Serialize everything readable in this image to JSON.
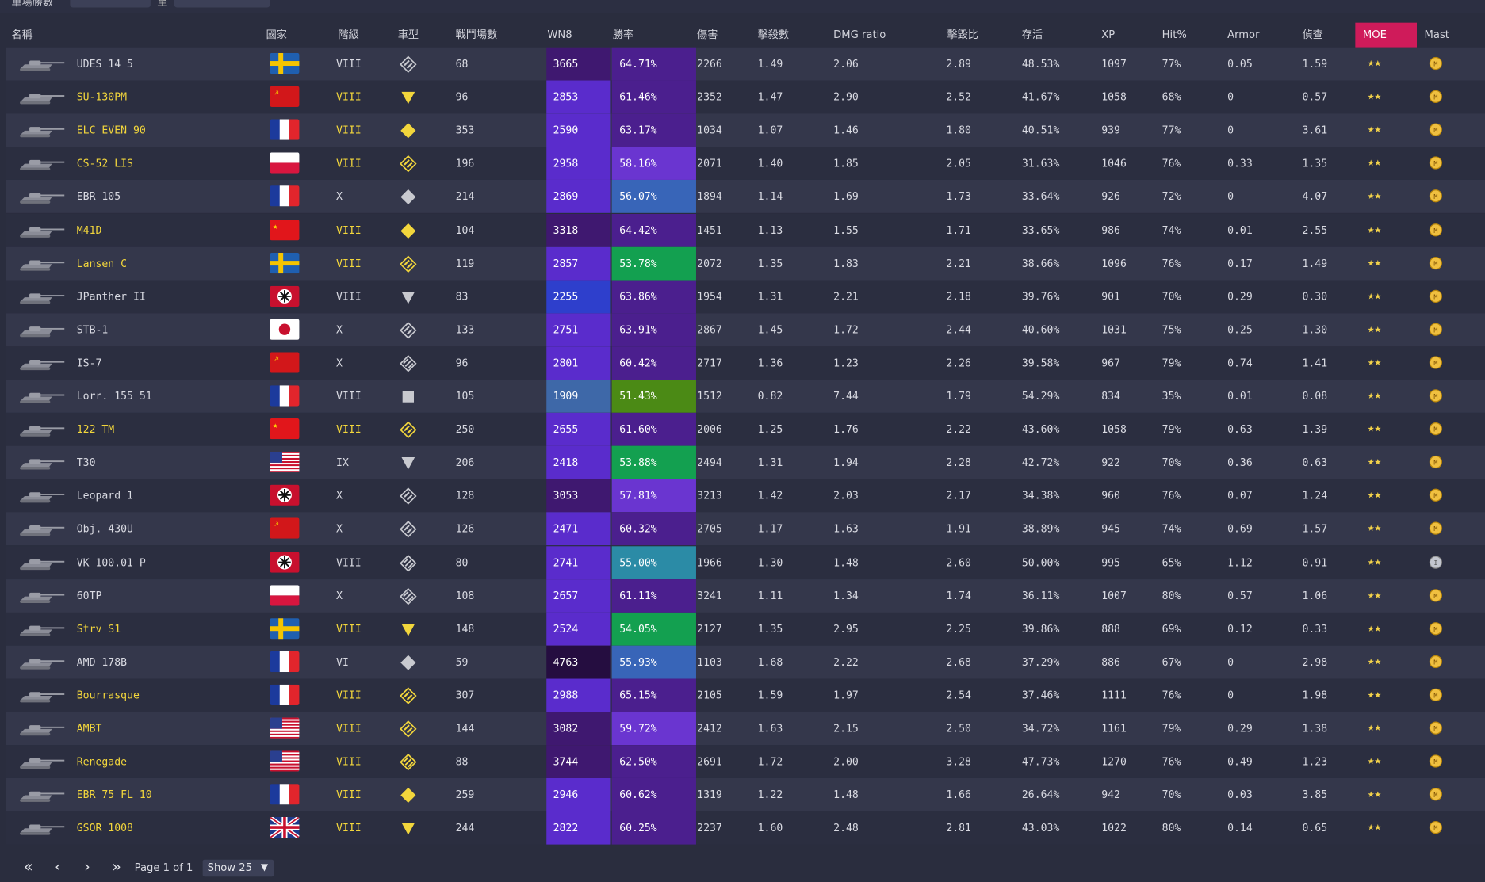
{
  "filter_bar": {
    "label": "單場勝數",
    "separator": "至"
  },
  "headers": {
    "name": "名稱",
    "nation": "國家",
    "tier": "階級",
    "type": "車型",
    "battles": "戰鬥場數",
    "wn8": "WN8",
    "winrate": "勝率",
    "damage": "傷害",
    "kills": "擊殺數",
    "dmg_ratio": "DMG ratio",
    "kd": "擊毀比",
    "survival": "存活",
    "xp": "XP",
    "hit": "Hit%",
    "armor": "Armor",
    "spot": "偵查",
    "moe": "MOE",
    "mast": "Mast"
  },
  "colors": {
    "premium_text": "#f2d63c",
    "moe_header": "#cf1b5a",
    "wn8_scale": {
      "super_unicum": "#250d40",
      "unicum": "#3f1870",
      "great": "#5a2ccc",
      "very_good": "#2e3fcc",
      "good": "#3e68a8"
    },
    "winrate_scale": {
      "super_unicum": "#4b1f8e",
      "unicum": "#6a35d0",
      "very_good": "#3865b8",
      "good": "#2b8ba6",
      "above_avg": "#13a050",
      "average": "#4b8a15"
    }
  },
  "rows": [
    {
      "icon": "tank-icon",
      "name": "UDES 14 5",
      "premium": false,
      "nation": "sweden",
      "tier": "VIII",
      "type": "medium",
      "battles": "68",
      "wn8": "3665",
      "wn8_color": "#3f1870",
      "winrate": "64.71%",
      "wr_color": "#4b1f8e",
      "damage": "2266",
      "kills": "1.49",
      "dmg_ratio": "2.06",
      "kd": "2.89",
      "survival": "48.53%",
      "xp": "1097",
      "hit": "77%",
      "armor": "0.05",
      "spot": "1.59",
      "moe": "★★",
      "mast": "ace"
    },
    {
      "icon": "tank-icon",
      "name": "SU-130PM",
      "premium": true,
      "nation": "ussr",
      "tier": "VIII",
      "type": "td",
      "battles": "96",
      "wn8": "2853",
      "wn8_color": "#5a2ccc",
      "winrate": "61.46%",
      "wr_color": "#4b1f8e",
      "damage": "2352",
      "kills": "1.47",
      "dmg_ratio": "2.90",
      "kd": "2.52",
      "survival": "41.67%",
      "xp": "1058",
      "hit": "68%",
      "armor": "0",
      "spot": "0.57",
      "moe": "★★",
      "mast": "ace"
    },
    {
      "icon": "tank-icon",
      "name": "ELC EVEN 90",
      "premium": true,
      "nation": "france",
      "tier": "VIII",
      "type": "light",
      "battles": "353",
      "wn8": "2590",
      "wn8_color": "#5a2ccc",
      "winrate": "63.17%",
      "wr_color": "#4b1f8e",
      "damage": "1034",
      "kills": "1.07",
      "dmg_ratio": "1.46",
      "kd": "1.80",
      "survival": "40.51%",
      "xp": "939",
      "hit": "77%",
      "armor": "0",
      "spot": "3.61",
      "moe": "★★",
      "mast": "ace"
    },
    {
      "icon": "tank-icon",
      "name": "CS-52 LIS",
      "premium": true,
      "nation": "poland",
      "tier": "VIII",
      "type": "medium",
      "battles": "196",
      "wn8": "2958",
      "wn8_color": "#5a2ccc",
      "winrate": "58.16%",
      "wr_color": "#6a35d0",
      "damage": "2071",
      "kills": "1.40",
      "dmg_ratio": "1.85",
      "kd": "2.05",
      "survival": "31.63%",
      "xp": "1046",
      "hit": "76%",
      "armor": "0.33",
      "spot": "1.35",
      "moe": "★★",
      "mast": "ace"
    },
    {
      "icon": "tank-icon",
      "name": "EBR 105",
      "premium": false,
      "nation": "france",
      "tier": "X",
      "type": "light",
      "battles": "214",
      "wn8": "2869",
      "wn8_color": "#5a2ccc",
      "winrate": "56.07%",
      "wr_color": "#3865b8",
      "damage": "1894",
      "kills": "1.14",
      "dmg_ratio": "1.69",
      "kd": "1.73",
      "survival": "33.64%",
      "xp": "926",
      "hit": "72%",
      "armor": "0",
      "spot": "4.07",
      "moe": "★★",
      "mast": "ace"
    },
    {
      "icon": "tank-icon",
      "name": "M41D",
      "premium": true,
      "nation": "china",
      "tier": "VIII",
      "type": "light",
      "battles": "104",
      "wn8": "3318",
      "wn8_color": "#3f1870",
      "winrate": "64.42%",
      "wr_color": "#4b1f8e",
      "damage": "1451",
      "kills": "1.13",
      "dmg_ratio": "1.55",
      "kd": "1.71",
      "survival": "33.65%",
      "xp": "986",
      "hit": "74%",
      "armor": "0.01",
      "spot": "2.55",
      "moe": "★★",
      "mast": "ace"
    },
    {
      "icon": "tank-icon",
      "name": "Lansen C",
      "premium": true,
      "nation": "sweden",
      "tier": "VIII",
      "type": "medium",
      "battles": "119",
      "wn8": "2857",
      "wn8_color": "#5a2ccc",
      "winrate": "53.78%",
      "wr_color": "#13a050",
      "damage": "2072",
      "kills": "1.35",
      "dmg_ratio": "1.83",
      "kd": "2.21",
      "survival": "38.66%",
      "xp": "1096",
      "hit": "76%",
      "armor": "0.17",
      "spot": "1.49",
      "moe": "★★",
      "mast": "ace"
    },
    {
      "icon": "tank-icon",
      "name": "JPanther II",
      "premium": false,
      "nation": "germany",
      "tier": "VIII",
      "type": "td",
      "battles": "83",
      "wn8": "2255",
      "wn8_color": "#2e3fcc",
      "winrate": "63.86%",
      "wr_color": "#4b1f8e",
      "damage": "1954",
      "kills": "1.31",
      "dmg_ratio": "2.21",
      "kd": "2.18",
      "survival": "39.76%",
      "xp": "901",
      "hit": "70%",
      "armor": "0.29",
      "spot": "0.30",
      "moe": "★★",
      "mast": "ace"
    },
    {
      "icon": "tank-icon",
      "name": "STB-1",
      "premium": false,
      "nation": "japan",
      "tier": "X",
      "type": "medium",
      "battles": "133",
      "wn8": "2751",
      "wn8_color": "#5a2ccc",
      "winrate": "63.91%",
      "wr_color": "#4b1f8e",
      "damage": "2867",
      "kills": "1.45",
      "dmg_ratio": "1.72",
      "kd": "2.44",
      "survival": "40.60%",
      "xp": "1031",
      "hit": "75%",
      "armor": "0.25",
      "spot": "1.30",
      "moe": "★★",
      "mast": "ace"
    },
    {
      "icon": "tank-icon",
      "name": "IS-7",
      "premium": false,
      "nation": "ussr",
      "tier": "X",
      "type": "heavy",
      "battles": "96",
      "wn8": "2801",
      "wn8_color": "#5a2ccc",
      "winrate": "60.42%",
      "wr_color": "#4b1f8e",
      "damage": "2717",
      "kills": "1.36",
      "dmg_ratio": "1.23",
      "kd": "2.26",
      "survival": "39.58%",
      "xp": "967",
      "hit": "79%",
      "armor": "0.74",
      "spot": "1.41",
      "moe": "★★",
      "mast": "ace"
    },
    {
      "icon": "tank-icon",
      "name": "Lorr. 155 51",
      "premium": false,
      "nation": "france",
      "tier": "VIII",
      "type": "spg",
      "battles": "105",
      "wn8": "1909",
      "wn8_color": "#3e68a8",
      "winrate": "51.43%",
      "wr_color": "#4b8a15",
      "damage": "1512",
      "kills": "0.82",
      "dmg_ratio": "7.44",
      "kd": "1.79",
      "survival": "54.29%",
      "xp": "834",
      "hit": "35%",
      "armor": "0.01",
      "spot": "0.08",
      "moe": "★★",
      "mast": "ace"
    },
    {
      "icon": "tank-icon",
      "name": "122 TM",
      "premium": true,
      "nation": "china",
      "tier": "VIII",
      "type": "medium",
      "battles": "250",
      "wn8": "2655",
      "wn8_color": "#5a2ccc",
      "winrate": "61.60%",
      "wr_color": "#4b1f8e",
      "damage": "2006",
      "kills": "1.25",
      "dmg_ratio": "1.76",
      "kd": "2.22",
      "survival": "43.60%",
      "xp": "1058",
      "hit": "79%",
      "armor": "0.63",
      "spot": "1.39",
      "moe": "★★",
      "mast": "ace"
    },
    {
      "icon": "tank-icon",
      "name": "T30",
      "premium": false,
      "nation": "usa",
      "tier": "IX",
      "type": "td",
      "battles": "206",
      "wn8": "2418",
      "wn8_color": "#5a2ccc",
      "winrate": "53.88%",
      "wr_color": "#13a050",
      "damage": "2494",
      "kills": "1.31",
      "dmg_ratio": "1.94",
      "kd": "2.28",
      "survival": "42.72%",
      "xp": "922",
      "hit": "70%",
      "armor": "0.36",
      "spot": "0.63",
      "moe": "★★",
      "mast": "ace"
    },
    {
      "icon": "tank-icon",
      "name": "Leopard 1",
      "premium": false,
      "nation": "germany",
      "tier": "X",
      "type": "medium",
      "battles": "128",
      "wn8": "3053",
      "wn8_color": "#3f1870",
      "winrate": "57.81%",
      "wr_color": "#6a35d0",
      "damage": "3213",
      "kills": "1.42",
      "dmg_ratio": "2.03",
      "kd": "2.17",
      "survival": "34.38%",
      "xp": "960",
      "hit": "76%",
      "armor": "0.07",
      "spot": "1.24",
      "moe": "★★",
      "mast": "ace"
    },
    {
      "icon": "tank-icon",
      "name": "Obj. 430U",
      "premium": false,
      "nation": "ussr",
      "tier": "X",
      "type": "medium",
      "battles": "126",
      "wn8": "2471",
      "wn8_color": "#5a2ccc",
      "winrate": "60.32%",
      "wr_color": "#4b1f8e",
      "damage": "2705",
      "kills": "1.17",
      "dmg_ratio": "1.63",
      "kd": "1.91",
      "survival": "38.89%",
      "xp": "945",
      "hit": "74%",
      "armor": "0.69",
      "spot": "1.57",
      "moe": "★★",
      "mast": "ace"
    },
    {
      "icon": "tank-icon",
      "name": "VK 100.01 P",
      "premium": false,
      "nation": "germany",
      "tier": "VIII",
      "type": "heavy",
      "battles": "80",
      "wn8": "2741",
      "wn8_color": "#5a2ccc",
      "winrate": "55.00%",
      "wr_color": "#2b8ba6",
      "damage": "1966",
      "kills": "1.30",
      "dmg_ratio": "1.48",
      "kd": "2.60",
      "survival": "50.00%",
      "xp": "995",
      "hit": "65%",
      "armor": "1.12",
      "spot": "0.91",
      "moe": "★★",
      "mast": "first"
    },
    {
      "icon": "tank-icon",
      "name": "60TP",
      "premium": false,
      "nation": "poland",
      "tier": "X",
      "type": "heavy",
      "battles": "108",
      "wn8": "2657",
      "wn8_color": "#5a2ccc",
      "winrate": "61.11%",
      "wr_color": "#4b1f8e",
      "damage": "3241",
      "kills": "1.11",
      "dmg_ratio": "1.34",
      "kd": "1.74",
      "survival": "36.11%",
      "xp": "1007",
      "hit": "80%",
      "armor": "0.57",
      "spot": "1.06",
      "moe": "★★",
      "mast": "ace"
    },
    {
      "icon": "tank-icon",
      "name": "Strv S1",
      "premium": true,
      "nation": "sweden",
      "tier": "VIII",
      "type": "td",
      "battles": "148",
      "wn8": "2524",
      "wn8_color": "#5a2ccc",
      "winrate": "54.05%",
      "wr_color": "#13a050",
      "damage": "2127",
      "kills": "1.35",
      "dmg_ratio": "2.95",
      "kd": "2.25",
      "survival": "39.86%",
      "xp": "888",
      "hit": "69%",
      "armor": "0.12",
      "spot": "0.33",
      "moe": "★★",
      "mast": "ace"
    },
    {
      "icon": "tank-icon",
      "name": "AMD 178B",
      "premium": false,
      "nation": "france",
      "tier": "VI",
      "type": "light",
      "battles": "59",
      "wn8": "4763",
      "wn8_color": "#250d40",
      "winrate": "55.93%",
      "wr_color": "#3865b8",
      "damage": "1103",
      "kills": "1.68",
      "dmg_ratio": "2.22",
      "kd": "2.68",
      "survival": "37.29%",
      "xp": "886",
      "hit": "67%",
      "armor": "0",
      "spot": "2.98",
      "moe": "★★",
      "mast": "ace"
    },
    {
      "icon": "tank-icon",
      "name": "Bourrasque",
      "premium": true,
      "nation": "france",
      "tier": "VIII",
      "type": "medium",
      "battles": "307",
      "wn8": "2988",
      "wn8_color": "#5a2ccc",
      "winrate": "65.15%",
      "wr_color": "#4b1f8e",
      "damage": "2105",
      "kills": "1.59",
      "dmg_ratio": "1.97",
      "kd": "2.54",
      "survival": "37.46%",
      "xp": "1111",
      "hit": "76%",
      "armor": "0",
      "spot": "1.98",
      "moe": "★★",
      "mast": "ace"
    },
    {
      "icon": "tank-icon",
      "name": "AMBT",
      "premium": true,
      "nation": "usa",
      "tier": "VIII",
      "type": "medium",
      "battles": "144",
      "wn8": "3082",
      "wn8_color": "#3f1870",
      "winrate": "59.72%",
      "wr_color": "#6a35d0",
      "damage": "2412",
      "kills": "1.63",
      "dmg_ratio": "2.15",
      "kd": "2.50",
      "survival": "34.72%",
      "xp": "1161",
      "hit": "79%",
      "armor": "0.29",
      "spot": "1.38",
      "moe": "★★",
      "mast": "ace"
    },
    {
      "icon": "tank-icon",
      "name": "Renegade",
      "premium": true,
      "nation": "usa",
      "tier": "VIII",
      "type": "heavy",
      "battles": "88",
      "wn8": "3744",
      "wn8_color": "#3f1870",
      "winrate": "62.50%",
      "wr_color": "#4b1f8e",
      "damage": "2691",
      "kills": "1.72",
      "dmg_ratio": "2.00",
      "kd": "3.28",
      "survival": "47.73%",
      "xp": "1270",
      "hit": "76%",
      "armor": "0.49",
      "spot": "1.23",
      "moe": "★★",
      "mast": "ace"
    },
    {
      "icon": "tank-icon",
      "name": "EBR 75 FL 10",
      "premium": true,
      "nation": "france",
      "tier": "VIII",
      "type": "light",
      "battles": "259",
      "wn8": "2946",
      "wn8_color": "#5a2ccc",
      "winrate": "60.62%",
      "wr_color": "#4b1f8e",
      "damage": "1319",
      "kills": "1.22",
      "dmg_ratio": "1.48",
      "kd": "1.66",
      "survival": "26.64%",
      "xp": "942",
      "hit": "70%",
      "armor": "0.03",
      "spot": "3.85",
      "moe": "★★",
      "mast": "ace"
    },
    {
      "icon": "tank-icon",
      "name": "GSOR 1008",
      "premium": true,
      "nation": "uk",
      "tier": "VIII",
      "type": "td",
      "battles": "244",
      "wn8": "2822",
      "wn8_color": "#5a2ccc",
      "winrate": "60.25%",
      "wr_color": "#4b1f8e",
      "damage": "2237",
      "kills": "1.60",
      "dmg_ratio": "2.48",
      "kd": "2.81",
      "survival": "43.03%",
      "xp": "1022",
      "hit": "80%",
      "armor": "0.14",
      "spot": "0.65",
      "moe": "★★",
      "mast": "ace"
    }
  ],
  "pagination": {
    "first": "«",
    "prev": "‹",
    "next": "›",
    "last": "»",
    "page_label": "Page",
    "page": "1",
    "of_label": "of",
    "total_pages": "1",
    "show_label": "Show",
    "show_value": "25"
  }
}
